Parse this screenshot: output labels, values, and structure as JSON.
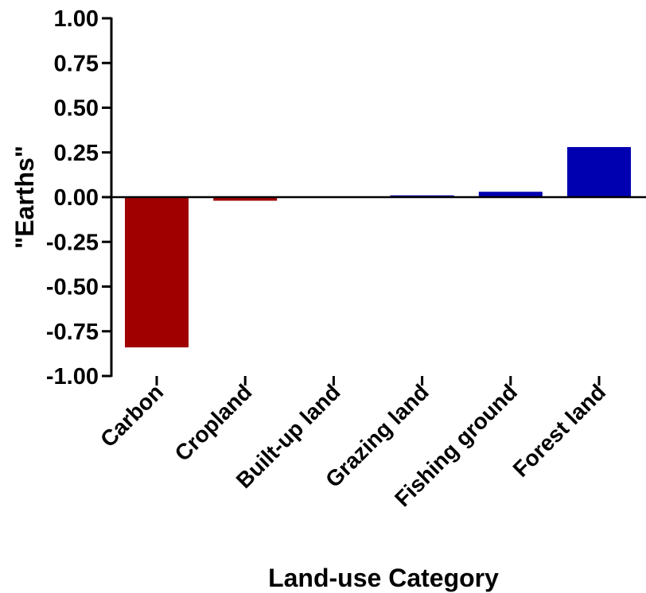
{
  "chart_data": {
    "type": "bar",
    "title": "",
    "xlabel": "Land-use Category",
    "ylabel": "\"Earths\"",
    "categories": [
      "Carbon",
      "Cropland",
      "Built-up land",
      "Grazing land",
      "Fishing ground",
      "Forest land"
    ],
    "values": [
      -0.84,
      -0.02,
      0.0,
      0.01,
      0.03,
      0.28
    ],
    "bar_colors": [
      "#a00000",
      "#a00000",
      "#a00000",
      "#0000b0",
      "#0000b0",
      "#0000b0"
    ],
    "ylim": [
      -1.0,
      1.0
    ],
    "yticks": [
      "1.00",
      "0.75",
      "0.50",
      "0.25",
      "0.00",
      "-0.25",
      "-0.50",
      "-0.75",
      "-1.00"
    ],
    "grid": false,
    "legend": "none"
  }
}
